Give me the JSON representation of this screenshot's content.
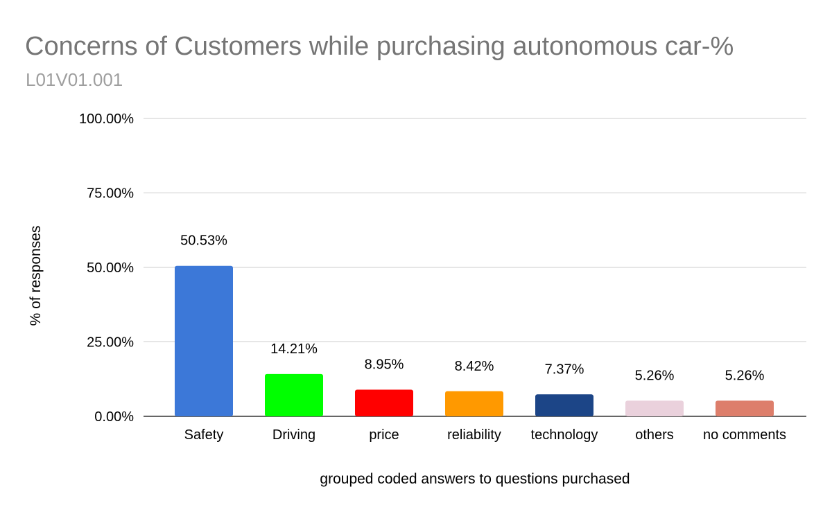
{
  "chart_data": {
    "type": "bar",
    "title": "Concerns of Customers while purchasing autonomous car-%",
    "subtitle": "L01V01.001",
    "xlabel": "grouped coded answers to questions purchased",
    "ylabel": "% of responses",
    "ylim": [
      0,
      100
    ],
    "yticks": [
      0,
      25,
      50,
      75,
      100
    ],
    "ytick_labels": [
      "0.00%",
      "25.00%",
      "50.00%",
      "75.00%",
      "100.00%"
    ],
    "grid": true,
    "legend": "none",
    "categories": [
      "Safety",
      "Driving",
      "price",
      "reliability",
      "technology",
      "others",
      "no comments"
    ],
    "values": [
      50.53,
      14.21,
      8.95,
      8.42,
      7.37,
      5.26,
      5.26
    ],
    "data_labels": [
      "50.53%",
      "14.21%",
      "8.95%",
      "8.42%",
      "7.37%",
      "5.26%",
      "5.26%"
    ],
    "colors": [
      "#3c78d8",
      "#00ff00",
      "#ff0000",
      "#ff9900",
      "#1c4587",
      "#ead1dc",
      "#dd7e6b"
    ]
  }
}
